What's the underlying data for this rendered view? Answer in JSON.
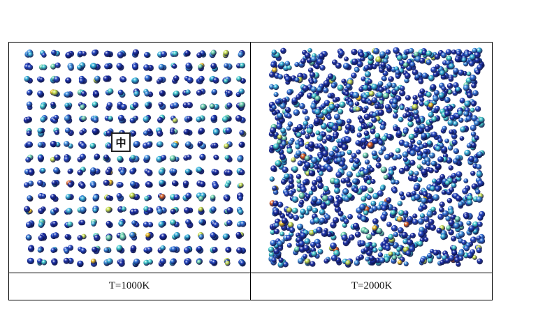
{
  "table": {
    "cells": [
      {
        "caption": "T=1000K"
      },
      {
        "caption": "T=2000K"
      }
    ]
  },
  "overlay": {
    "badge_glyph": "中"
  },
  "colors": {
    "atom_palette": [
      "#1b2fa8",
      "#2346c4",
      "#2f6fd8",
      "#3c8fe0",
      "#35b4dc",
      "#41cfd0",
      "#6fd8b0",
      "#c8e04a",
      "#f0c020",
      "#e06020"
    ],
    "border": "#000000"
  }
}
